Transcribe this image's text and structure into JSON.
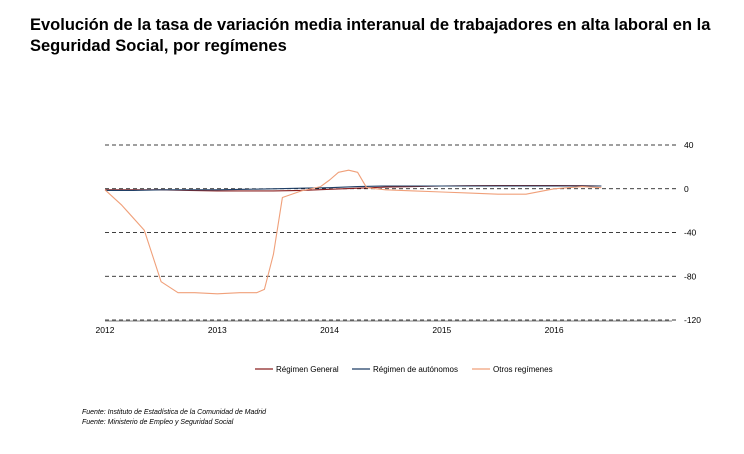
{
  "title": "Evolución de la tasa de variación media interanual de trabajadores en alta laboral en la Seguridad Social, por  regímenes",
  "colors": {
    "regimen_general": "#8b2020",
    "regimen_autonomos": "#1f3f66",
    "otros_regimenes": "#f0a07a",
    "grid": "#000000",
    "axis": "#555555"
  },
  "chart_data": {
    "type": "line",
    "title": "Evolución de la tasa de variación media interanual de trabajadores en alta laboral en la Seguridad Social, por  regímenes",
    "xlabel": "",
    "ylabel": "",
    "x_tick_labels": [
      "2012",
      "2013",
      "2014",
      "2015",
      "2016"
    ],
    "xlim": [
      2012,
      2017.05
    ],
    "ylim": [
      -120,
      40
    ],
    "y_ticks": [
      40,
      0,
      -40,
      -80,
      -120
    ],
    "y_tick_labels": [
      "40",
      "0",
      "-40",
      "-80",
      "-120"
    ],
    "grid": true,
    "grid_style": "dashed horizontal",
    "y_axis_side": "right",
    "legend_position": "bottom",
    "series": [
      {
        "name": "Régimen General",
        "color": "#8b2020",
        "x": [
          2012,
          2012.25,
          2012.5,
          2012.75,
          2013,
          2013.25,
          2013.5,
          2013.75,
          2014,
          2014.25,
          2014.5,
          2014.75,
          2015,
          2015.25,
          2015.5,
          2015.75,
          2016,
          2016.25,
          2016.42
        ],
        "y": [
          -1,
          -1,
          -1,
          -1.5,
          -2,
          -2,
          -2,
          -1.5,
          -0.5,
          0.5,
          1.5,
          2,
          2.5,
          2.8,
          3,
          3,
          3,
          2.8,
          2.5
        ]
      },
      {
        "name": "Régimen de autónomos",
        "color": "#1f3f66",
        "x": [
          2012,
          2012.25,
          2012.5,
          2012.75,
          2013,
          2013.25,
          2013.5,
          2013.75,
          2014,
          2014.25,
          2014.5,
          2014.75,
          2015,
          2015.25,
          2015.5,
          2015.75,
          2016,
          2016.25,
          2016.42
        ],
        "y": [
          -1.5,
          -1.5,
          -1,
          -1,
          -1,
          -0.5,
          0,
          0.5,
          1,
          2,
          2.5,
          2.5,
          2.5,
          2.5,
          2.5,
          2.5,
          2.5,
          2.5,
          2.5
        ]
      },
      {
        "name": "Otros regímenes",
        "color": "#f0a07a",
        "x": [
          2012,
          2012.15,
          2012.35,
          2012.5,
          2012.65,
          2012.8,
          2013,
          2013.2,
          2013.35,
          2013.42,
          2013.5,
          2013.58,
          2013.75,
          2013.92,
          2014,
          2014.08,
          2014.17,
          2014.25,
          2014.33,
          2014.5,
          2014.75,
          2015,
          2015.25,
          2015.5,
          2015.75,
          2016,
          2016.25,
          2016.42
        ],
        "y": [
          -1,
          -15,
          -38,
          -85,
          -95,
          -95,
          -96,
          -95,
          -95,
          -92,
          -60,
          -8,
          -2,
          2,
          8,
          15,
          17,
          15,
          1,
          -1,
          -2,
          -3,
          -4,
          -5,
          -5,
          0,
          2,
          1
        ]
      }
    ]
  },
  "legend": {
    "items": [
      {
        "label": "Régimen General"
      },
      {
        "label": "Régimen de autónomos"
      },
      {
        "label": "Otros regímenes"
      }
    ]
  },
  "source": {
    "line1": "Fuente: Instituto de Estadística de la Comunidad de Madrid",
    "line2": "Fuente: Ministerio de Empleo y Seguridad Social"
  }
}
